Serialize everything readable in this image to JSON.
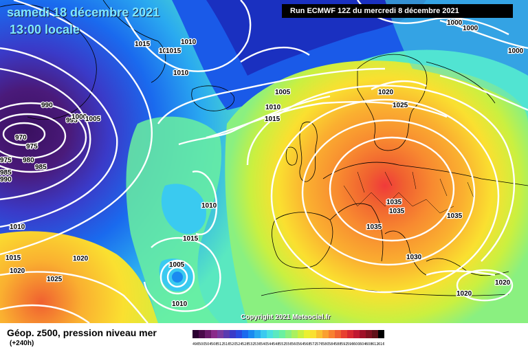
{
  "header": {
    "date_line": "samedi 18 décembre 2021",
    "time_line": "13:00 locale",
    "run_info": "Run ECMWF 12Z du mercredi 8 décembre 2021"
  },
  "copyright": "Copyright 2021 Meteociel.fr",
  "footer": {
    "title": "Géop. z500, pression niveau mer",
    "subtitle": "(+240h)"
  },
  "colors": {
    "land_lines": "#000000",
    "isobar": "#ffffff"
  },
  "isobar_labels": [
    {
      "text": "1015"
    },
    {
      "text": "1010"
    },
    {
      "text": "1015"
    },
    {
      "text": "1010"
    },
    {
      "text": "1010"
    },
    {
      "text": "1005"
    },
    {
      "text": "1010"
    },
    {
      "text": "1015"
    },
    {
      "text": "1020"
    },
    {
      "text": "1025"
    },
    {
      "text": "990"
    },
    {
      "text": "995"
    },
    {
      "text": "1000"
    },
    {
      "text": "1005"
    },
    {
      "text": "970"
    },
    {
      "text": "975"
    },
    {
      "text": "975"
    },
    {
      "text": "980"
    },
    {
      "text": "985"
    },
    {
      "text": "985"
    },
    {
      "text": "990"
    },
    {
      "text": "1010"
    },
    {
      "text": "1010"
    },
    {
      "text": "1015"
    },
    {
      "text": "1020"
    },
    {
      "text": "1015"
    },
    {
      "text": "1020"
    },
    {
      "text": "1025"
    },
    {
      "text": "1005"
    },
    {
      "text": "1010"
    },
    {
      "text": "1035"
    },
    {
      "text": "1035"
    },
    {
      "text": "1035"
    },
    {
      "text": "1035"
    },
    {
      "text": "1030"
    },
    {
      "text": "1020"
    },
    {
      "text": "1020"
    },
    {
      "text": "1000"
    },
    {
      "text": "1000"
    },
    {
      "text": "1000"
    }
  ],
  "scale": {
    "labels": [
      "496",
      "500",
      "504",
      "508",
      "512",
      "516",
      "520",
      "524",
      "528",
      "532",
      "536",
      "540",
      "544",
      "548",
      "552",
      "556",
      "560",
      "564",
      "568",
      "572",
      "576",
      "580",
      "584",
      "588",
      "592",
      "596",
      "600",
      "604",
      "608",
      "612",
      "616"
    ],
    "colors": [
      "#2a0030",
      "#4a0a4a",
      "#6a1a6a",
      "#8a2a8a",
      "#7a3aa0",
      "#5a3ab0",
      "#3a3ac8",
      "#2a4ae0",
      "#1a6aee",
      "#1a8af0",
      "#2aaaf0",
      "#3acaf0",
      "#4ae0e0",
      "#5ae8c0",
      "#6af0a0",
      "#8af080",
      "#aaf060",
      "#caf040",
      "#eaf030",
      "#fae030",
      "#fac030",
      "#faa030",
      "#f88030",
      "#f06030",
      "#e84030",
      "#d82830",
      "#c01830",
      "#a01028",
      "#801020",
      "#601018",
      "#000000"
    ]
  }
}
